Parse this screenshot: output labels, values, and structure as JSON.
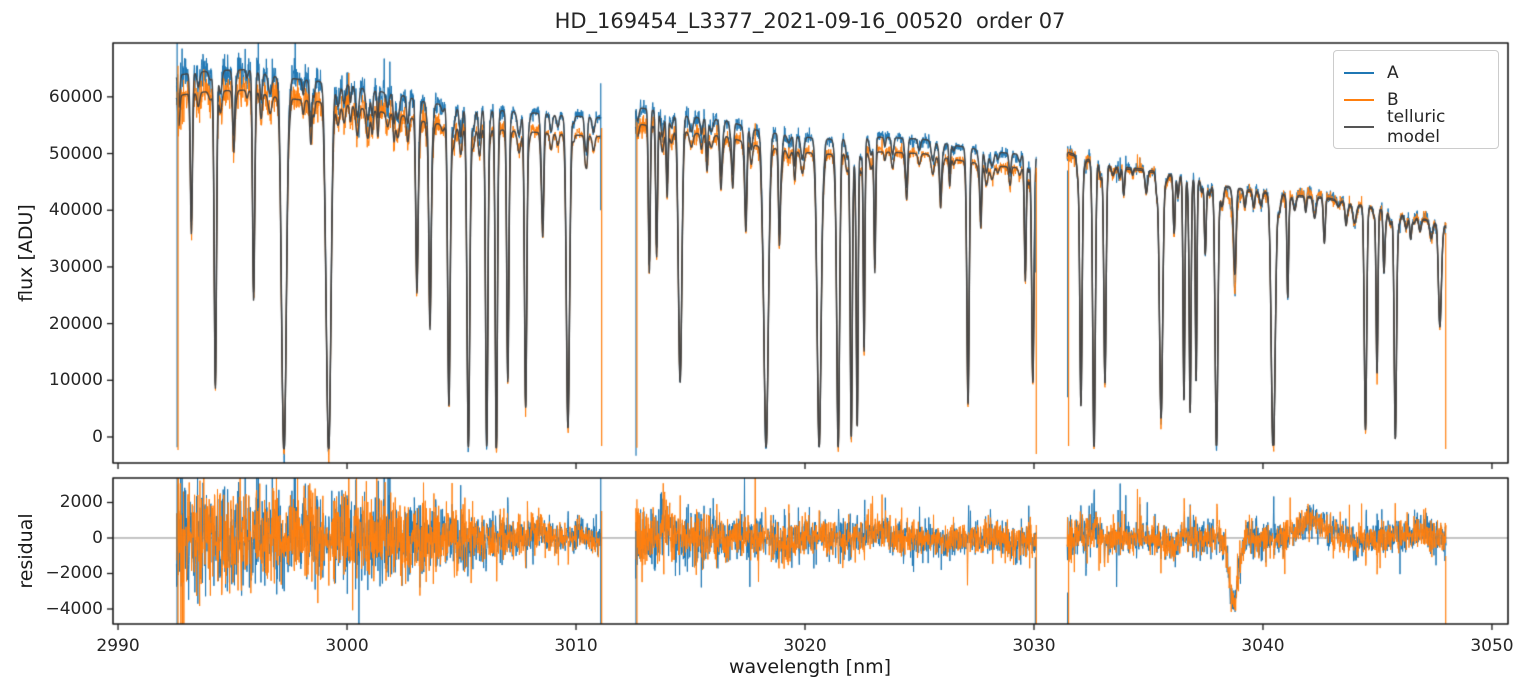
{
  "title": "HD_169454_L3377_2021-09-16_00520  order 07",
  "xlabel": "wavelength [nm]",
  "ylabel_flux": "flux [ADU]",
  "ylabel_residual": "residual",
  "legend": {
    "entries": [
      {
        "label": "A",
        "color": "#1f77b4"
      },
      {
        "label": "B",
        "color": "#ff7f0e"
      },
      {
        "label": "telluric model",
        "color": "#555555"
      }
    ]
  },
  "chart_data": {
    "type": "line",
    "title": "HD_169454_L3377_2021-09-16_00520  order 07",
    "xlabel": "wavelength [nm]",
    "ylabel_top": "flux [ADU]",
    "ylabel_bottom": "residual",
    "legend_position": "upper right",
    "x_range": [
      2989.78,
      3050.7
    ],
    "flux_range": [
      -4590,
      69500
    ],
    "residual_range": [
      -4845,
      3380
    ],
    "x_ticks": [
      2990,
      3000,
      3010,
      3020,
      3030,
      3040,
      3050
    ],
    "x_tick_labels": [
      "2990",
      "3000",
      "3010",
      "3020",
      "3030",
      "3040",
      "3050"
    ],
    "flux_ticks": [
      0,
      10000,
      20000,
      30000,
      40000,
      50000,
      60000
    ],
    "flux_tick_labels": [
      "0",
      "10000",
      "20000",
      "30000",
      "40000",
      "50000",
      "60000"
    ],
    "residual_ticks": [
      2000,
      0,
      -2000,
      -4000
    ],
    "residual_tick_labels": [
      "2000",
      "0",
      "−2000",
      "−4000"
    ],
    "series": [
      {
        "name": "A",
        "color": "#1f77b4",
        "width": 1.0
      },
      {
        "name": "B",
        "color": "#ff7f0e",
        "width": 1.0
      },
      {
        "name": "telluric model",
        "color": "#454545",
        "width": 1.4
      }
    ],
    "zero_line_color": "#888888",
    "frame_color": "#1a1a1a",
    "segments": [
      {
        "start": 2992.55,
        "end": 3011.1,
        "continuum_A": [
          [
            2992.55,
            63800
          ],
          [
            2994.0,
            64600
          ],
          [
            2995.6,
            64800
          ],
          [
            2997.0,
            63500
          ],
          [
            2998.6,
            62800
          ],
          [
            3000.0,
            62300
          ],
          [
            3001.0,
            61200
          ],
          [
            3002.3,
            60400
          ],
          [
            3003.3,
            59200
          ],
          [
            3004.8,
            58200
          ],
          [
            3006.4,
            57700
          ],
          [
            3008.0,
            57200
          ],
          [
            3009.5,
            56700
          ],
          [
            3011.1,
            56300
          ]
        ],
        "offset_B": [
          [
            2992.55,
            3600
          ],
          [
            3000.0,
            3600
          ],
          [
            3011.1,
            3300
          ]
        ],
        "noise_sigma": [
          [
            2992.55,
            1500
          ],
          [
            2996.0,
            1400
          ],
          [
            3002.0,
            1300
          ],
          [
            3004.0,
            1100
          ],
          [
            3006.0,
            700
          ],
          [
            3008.0,
            500
          ],
          [
            3009.5,
            420
          ],
          [
            3011.1,
            380
          ]
        ]
      },
      {
        "start": 3012.6,
        "end": 3030.1,
        "continuum_A": [
          [
            3012.6,
            58200
          ],
          [
            3013.9,
            57300
          ],
          [
            3015.4,
            56300
          ],
          [
            3016.6,
            55800
          ],
          [
            3017.8,
            54200
          ],
          [
            3019.4,
            53100
          ],
          [
            3021.2,
            52500
          ],
          [
            3023.4,
            52900
          ],
          [
            3025.2,
            52500
          ],
          [
            3026.6,
            51400
          ],
          [
            3028.0,
            50400
          ],
          [
            3030.1,
            49600
          ]
        ],
        "offset_B": [
          [
            3012.6,
            2900
          ],
          [
            3020.0,
            2700
          ],
          [
            3030.1,
            2400
          ]
        ],
        "noise_sigma": [
          [
            3012.6,
            1000
          ],
          [
            3014.5,
            850
          ],
          [
            3017.0,
            600
          ],
          [
            3020.0,
            650
          ],
          [
            3023.0,
            550
          ],
          [
            3026.0,
            480
          ],
          [
            3028.0,
            520
          ],
          [
            3030.1,
            620
          ]
        ]
      },
      {
        "start": 3031.45,
        "end": 3048.0,
        "continuum_A": [
          [
            3031.45,
            50300
          ],
          [
            3032.6,
            48700
          ],
          [
            3033.6,
            47700
          ],
          [
            3034.7,
            47300
          ],
          [
            3036.2,
            46200
          ],
          [
            3037.7,
            44800
          ],
          [
            3039.2,
            43700
          ],
          [
            3041.2,
            42700
          ],
          [
            3042.7,
            42300
          ],
          [
            3044.2,
            41000
          ],
          [
            3045.7,
            39700
          ],
          [
            3047.2,
            38300
          ],
          [
            3048.0,
            37200
          ]
        ],
        "offset_B": [
          [
            3031.45,
            300
          ],
          [
            3048.0,
            200
          ]
        ],
        "noise_sigma": [
          [
            3031.45,
            700
          ],
          [
            3034.0,
            480
          ],
          [
            3038.0,
            500
          ],
          [
            3042.0,
            450
          ],
          [
            3045.0,
            480
          ],
          [
            3048.0,
            600
          ]
        ]
      }
    ],
    "absorption_lines": [
      [
        2993.2,
        0.38,
        0.045
      ],
      [
        2994.25,
        0.86,
        0.05
      ],
      [
        2995.05,
        0.12,
        0.04
      ],
      [
        2995.92,
        0.6,
        0.045
      ],
      [
        2997.25,
        1.04,
        0.1
      ],
      [
        2998.42,
        0.13,
        0.05
      ],
      [
        2999.2,
        1.04,
        0.1
      ],
      [
        3000.15,
        0.05,
        0.04
      ],
      [
        3001.1,
        0.07,
        0.04
      ],
      [
        3002.05,
        0.08,
        0.04
      ],
      [
        3003.05,
        0.52,
        0.05
      ],
      [
        3003.62,
        0.62,
        0.05
      ],
      [
        3004.45,
        0.9,
        0.055
      ],
      [
        3005.3,
        1.03,
        0.06
      ],
      [
        3006.1,
        1.03,
        0.05
      ],
      [
        3006.52,
        1.0,
        0.045
      ],
      [
        3007.02,
        0.76,
        0.045
      ],
      [
        3007.8,
        0.9,
        0.05
      ],
      [
        3008.55,
        0.33,
        0.045
      ],
      [
        3009.65,
        0.95,
        0.07
      ],
      [
        3010.4,
        0.08,
        0.04
      ],
      [
        3013.2,
        0.45,
        0.04
      ],
      [
        3013.52,
        0.42,
        0.04
      ],
      [
        3013.98,
        0.22,
        0.04
      ],
      [
        3014.55,
        0.8,
        0.075
      ],
      [
        3015.72,
        0.12,
        0.04
      ],
      [
        3016.32,
        0.1,
        0.04
      ],
      [
        3016.85,
        0.14,
        0.04
      ],
      [
        3017.42,
        0.26,
        0.045
      ],
      [
        3018.3,
        1.04,
        0.095
      ],
      [
        3018.88,
        0.32,
        0.04
      ],
      [
        3019.55,
        0.1,
        0.04
      ],
      [
        3020.62,
        1.03,
        0.085
      ],
      [
        3021.45,
        1.03,
        0.06
      ],
      [
        3022.02,
        1.0,
        0.045
      ],
      [
        3022.28,
        0.96,
        0.04
      ],
      [
        3022.58,
        0.7,
        0.035
      ],
      [
        3023.05,
        0.42,
        0.035
      ],
      [
        3024.45,
        0.1,
        0.04
      ],
      [
        3025.92,
        0.1,
        0.035
      ],
      [
        3026.32,
        0.1,
        0.035
      ],
      [
        3027.12,
        0.88,
        0.05
      ],
      [
        3027.68,
        0.22,
        0.04
      ],
      [
        3029.62,
        0.42,
        0.04
      ],
      [
        3029.95,
        0.8,
        0.05
      ],
      [
        3032.05,
        0.88,
        0.05
      ],
      [
        3032.62,
        1.03,
        0.055
      ],
      [
        3033.1,
        0.8,
        0.05
      ],
      [
        3033.92,
        0.1,
        0.04
      ],
      [
        3035.55,
        0.93,
        0.07
      ],
      [
        3036.12,
        0.22,
        0.04
      ],
      [
        3036.55,
        0.86,
        0.04
      ],
      [
        3036.82,
        0.9,
        0.04
      ],
      [
        3037.08,
        0.78,
        0.035
      ],
      [
        3037.48,
        0.28,
        0.04
      ],
      [
        3037.97,
        1.04,
        0.06
      ],
      [
        3038.78,
        0.3,
        0.05
      ],
      [
        3040.45,
        1.04,
        0.085
      ],
      [
        3041.08,
        0.38,
        0.035
      ],
      [
        3042.68,
        0.12,
        0.04
      ],
      [
        3043.62,
        0.08,
        0.04
      ],
      [
        3044.48,
        0.92,
        0.05
      ],
      [
        3044.98,
        0.72,
        0.04
      ],
      [
        3045.28,
        0.25,
        0.035
      ],
      [
        3045.78,
        1.0,
        0.05
      ],
      [
        3046.45,
        0.1,
        0.04
      ],
      [
        3047.72,
        0.45,
        0.06
      ]
    ],
    "weak_line_field": {
      "seed": 7,
      "spacing_nm": [
        0.22,
        0.62
      ],
      "depth": [
        0.02,
        0.09
      ],
      "sigma_nm": [
        0.035,
        0.075
      ]
    },
    "residual_systematics": [
      [
        3008.3,
        500,
        0.3
      ],
      [
        3010.2,
        350,
        0.2
      ],
      [
        3013.9,
        900,
        0.15
      ],
      [
        3019.0,
        -400,
        0.3
      ],
      [
        3023.2,
        450,
        0.45
      ],
      [
        3026.1,
        -350,
        0.3
      ],
      [
        3029.2,
        -450,
        0.25
      ],
      [
        3032.7,
        700,
        0.18
      ],
      [
        3036.1,
        -450,
        0.2
      ],
      [
        3038.72,
        -3650,
        0.2
      ],
      [
        3042.2,
        1000,
        0.55
      ],
      [
        3044.1,
        -400,
        0.2
      ],
      [
        3046.9,
        600,
        0.3
      ]
    ],
    "noise_seed": {
      "A": 12345,
      "B": 67890
    },
    "edge_spikes": [
      {
        "series": "A",
        "lambda": 2992.58,
        "from": -1800,
        "to": 69500
      },
      {
        "series": "B",
        "lambda": 2992.62,
        "from": -2300,
        "to": 65500
      },
      {
        "series": "A",
        "lambda": 3011.08,
        "from": 40000,
        "to": 62400
      },
      {
        "series": "B",
        "lambda": 3011.12,
        "from": -1600,
        "to": 54500
      },
      {
        "series": "A",
        "lambda": 3012.62,
        "from": -3300,
        "to": 57500
      },
      {
        "series": "B",
        "lambda": 3012.66,
        "from": -1900,
        "to": 55500
      },
      {
        "series": "A",
        "lambda": 3030.06,
        "from": 29000,
        "to": 45000
      },
      {
        "series": "B",
        "lambda": 3030.1,
        "from": -3000,
        "to": 47500
      },
      {
        "series": "A",
        "lambda": 3031.47,
        "from": 7000,
        "to": 47000
      },
      {
        "series": "B",
        "lambda": 3031.51,
        "from": -1600,
        "to": 50000
      },
      {
        "series": "B",
        "lambda": 3047.98,
        "from": -2100,
        "to": 36000
      }
    ]
  }
}
